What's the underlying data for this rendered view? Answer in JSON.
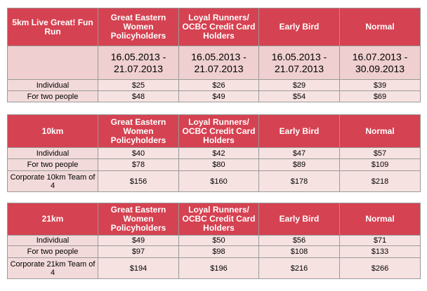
{
  "tables": [
    {
      "header": [
        "5km Live Great! Fun Run",
        "Great Eastern Women Policyholders",
        "Loyal Runners/ OCBC Credit Card Holders",
        "Early Bird",
        "Normal"
      ],
      "dates": [
        "",
        "16.05.2013 - 21.07.2013",
        "16.05.2013 - 21.07.2013",
        "16.05.2013 - 21.07.2013",
        "16.07.2013 - 30.09.2013"
      ],
      "rows": [
        [
          "Individual",
          "$25",
          "$26",
          "$29",
          "$39"
        ],
        [
          "For two people",
          "$48",
          "$49",
          "$54",
          "$69"
        ]
      ]
    },
    {
      "header": [
        "10km",
        "Great Eastern Women Policyholders",
        "Loyal Runners/ OCBC Credit Card Holders",
        "Early Bird",
        "Normal"
      ],
      "rows": [
        [
          "Individual",
          "$40",
          "$42",
          "$47",
          "$57"
        ],
        [
          "For two people",
          "$78",
          "$80",
          "$89",
          "$109"
        ],
        [
          "Corporate 10km Team of 4",
          "$156",
          "$160",
          "$178",
          "$218"
        ]
      ]
    },
    {
      "header": [
        "21km",
        "Great Eastern Women Policyholders",
        "Loyal Runners/ OCBC Credit Card Holders",
        "Early Bird",
        "Normal"
      ],
      "rows": [
        [
          "Individual",
          "$49",
          "$50",
          "$56",
          "$71"
        ],
        [
          "For two people",
          "$97",
          "$98",
          "$108",
          "$133"
        ],
        [
          "Corporate 21km Team of 4",
          "$194",
          "$196",
          "$216",
          "$266"
        ]
      ]
    }
  ],
  "colors": {
    "header_bg": "#d54251",
    "dates_bg": "#efcfcf",
    "row_bg": "#f7e2e2"
  }
}
